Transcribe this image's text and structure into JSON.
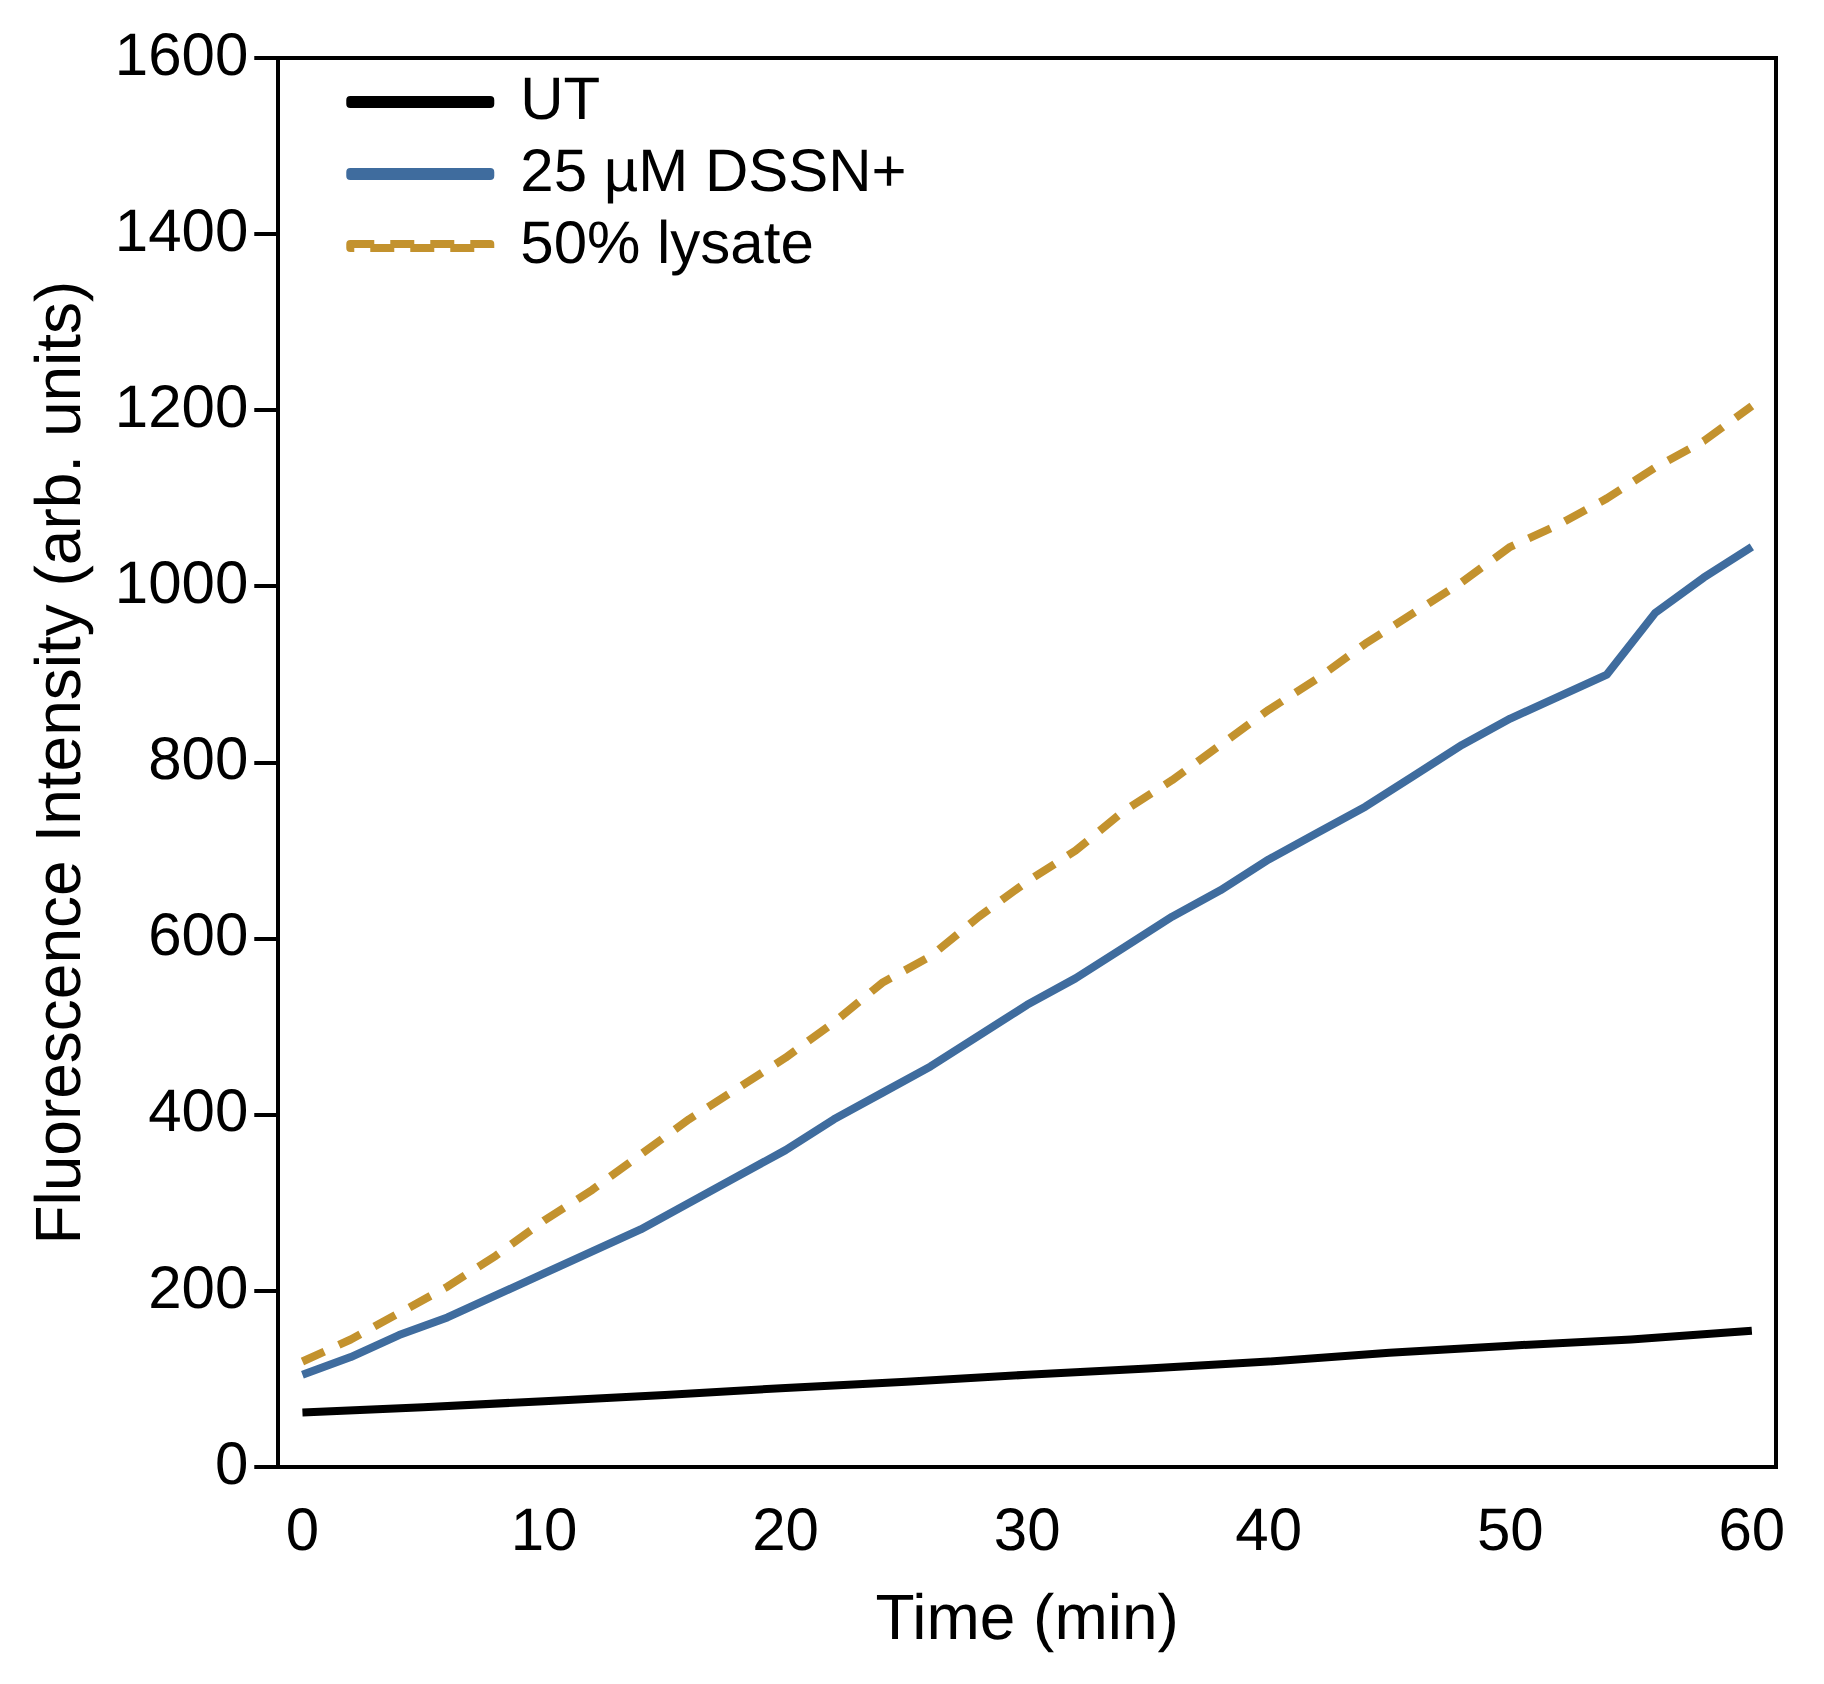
{
  "chart_data": {
    "type": "line",
    "xlabel": "Time (min)",
    "ylabel": "Fluorescence Intensity (arb. units)",
    "xlim": [
      -1,
      61
    ],
    "xticks": [
      0,
      10,
      20,
      30,
      40,
      50,
      60
    ],
    "ylim": [
      0,
      1600
    ],
    "yticks": [
      0,
      200,
      400,
      600,
      800,
      1000,
      1200,
      1400,
      1600
    ],
    "grid": false,
    "legend": "top left",
    "series": [
      {
        "name": "UT",
        "color": "#000000",
        "line_style": "solid",
        "x": [
          0,
          5,
          10,
          15,
          20,
          25,
          30,
          35,
          40,
          45,
          50,
          55,
          60
        ],
        "values": [
          62,
          68,
          75,
          82,
          90,
          97,
          105,
          112,
          120,
          130,
          138,
          145,
          155
        ]
      },
      {
        "name": "25 µM DSSN+",
        "color": "#3f6c9e",
        "line_style": "solid",
        "x": [
          0,
          2,
          4,
          6,
          8,
          10,
          12,
          14,
          16,
          18,
          20,
          22,
          24,
          26,
          28,
          30,
          32,
          34,
          36,
          38,
          40,
          42,
          44,
          46,
          48,
          50,
          52,
          54,
          56,
          58,
          60
        ],
        "values": [
          105,
          125,
          150,
          170,
          195,
          220,
          245,
          270,
          300,
          330,
          360,
          395,
          425,
          455,
          490,
          525,
          555,
          590,
          625,
          655,
          690,
          720,
          750,
          785,
          820,
          850,
          875,
          900,
          970,
          1010,
          1045
        ]
      },
      {
        "name": "50% lysate",
        "color": "#c3922e",
        "line_style": "dashed",
        "x": [
          0,
          2,
          4,
          6,
          8,
          10,
          12,
          14,
          16,
          18,
          20,
          22,
          24,
          26,
          28,
          30,
          32,
          34,
          36,
          38,
          40,
          42,
          44,
          46,
          48,
          50,
          52,
          54,
          56,
          58,
          60
        ],
        "values": [
          120,
          145,
          175,
          205,
          240,
          280,
          315,
          355,
          395,
          430,
          465,
          505,
          550,
          580,
          625,
          665,
          700,
          745,
          780,
          820,
          860,
          895,
          935,
          970,
          1005,
          1045,
          1070,
          1100,
          1135,
          1165,
          1205
        ]
      }
    ]
  }
}
